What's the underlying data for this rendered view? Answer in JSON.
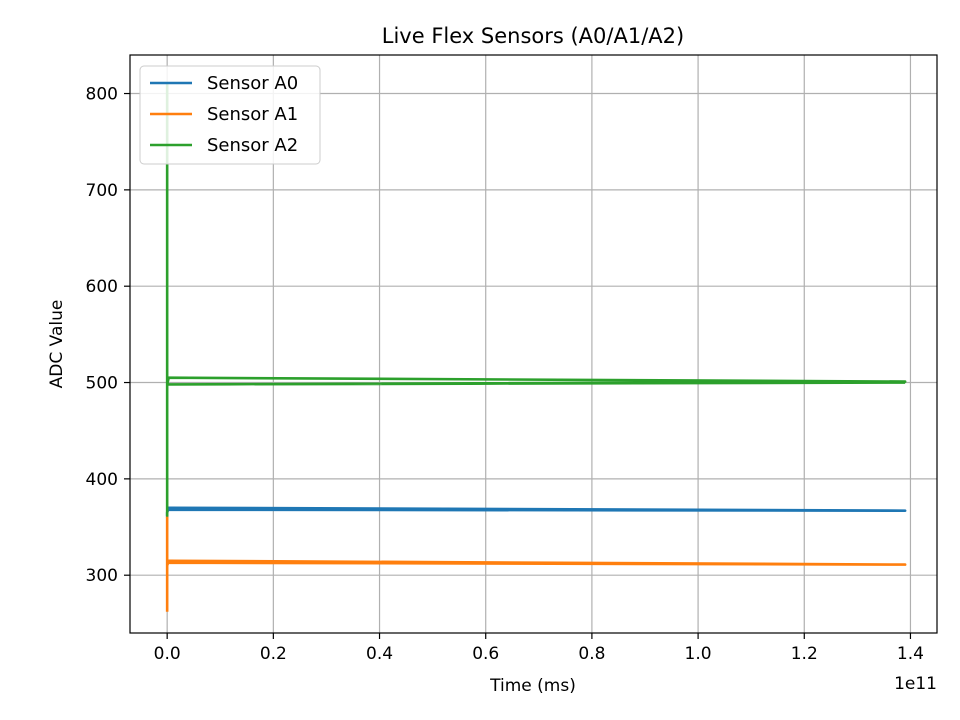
{
  "chart_data": {
    "type": "line",
    "title": "Live Flex Sensors (A0/A1/A2)",
    "xlabel": "Time (ms)",
    "ylabel": "ADC Value",
    "x_offset_label": "1e11",
    "xlim": [
      -0.07,
      1.45
    ],
    "ylim": [
      240,
      840
    ],
    "x_ticks": [
      0.0,
      0.2,
      0.4,
      0.6,
      0.8,
      1.0,
      1.2,
      1.4
    ],
    "x_tick_labels": [
      "0.0",
      "0.2",
      "0.4",
      "0.6",
      "0.8",
      "1.0",
      "1.2",
      "1.4"
    ],
    "y_ticks": [
      300,
      400,
      500,
      600,
      700,
      800
    ],
    "y_tick_labels": [
      "300",
      "400",
      "500",
      "600",
      "700",
      "800"
    ],
    "grid": true,
    "legend_position": "top-left",
    "series": [
      {
        "name": "Sensor A0",
        "color": "#1f77b4",
        "x": [
          0.0,
          0.0,
          0.003,
          1.39,
          0.003,
          1.39
        ],
        "y": [
          360,
          365,
          370,
          367,
          368,
          367
        ]
      },
      {
        "name": "Sensor A1",
        "color": "#ff7f0e",
        "x": [
          0.0,
          0.0,
          0.0,
          0.003,
          1.39,
          0.003,
          1.39
        ],
        "y": [
          262,
          360,
          310,
          315,
          311,
          313,
          311
        ]
      },
      {
        "name": "Sensor A2",
        "color": "#2ca02c",
        "x": [
          0.0,
          0.0,
          0.0,
          0.003,
          1.39,
          0.003,
          1.39
        ],
        "y": [
          810,
          362,
          498,
          505,
          501,
          498,
          500
        ]
      }
    ]
  }
}
